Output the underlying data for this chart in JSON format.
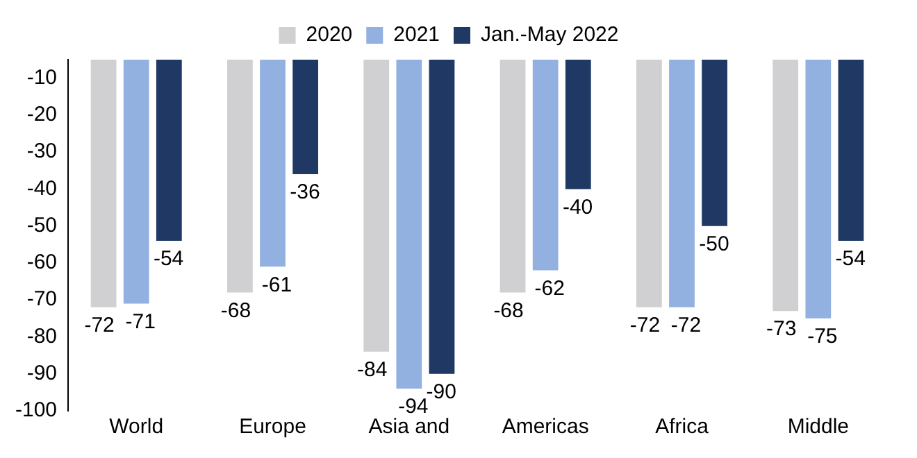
{
  "chart_data": {
    "type": "bar",
    "categories": [
      "World",
      "Europe",
      "Asia and",
      "Americas",
      "Africa",
      "Middle"
    ],
    "series": [
      {
        "name": "2020",
        "color": "#d0cfd1",
        "values": [
          -72,
          -68,
          -84,
          -68,
          -72,
          -73
        ]
      },
      {
        "name": "2021",
        "color": "#92b0e0",
        "values": [
          -71,
          -61,
          -94,
          -62,
          -72,
          -75
        ]
      },
      {
        "name": "Jan.-May 2022",
        "color": "#1f3864",
        "values": [
          -54,
          -36,
          -90,
          -40,
          -50,
          -54
        ]
      }
    ],
    "ylim": [
      -100,
      -5
    ],
    "yticks": [
      -100,
      -90,
      -80,
      -70,
      -60,
      -50,
      -40,
      -30,
      -20,
      -10
    ],
    "grid": false,
    "legend": "top",
    "data_labels": true
  }
}
